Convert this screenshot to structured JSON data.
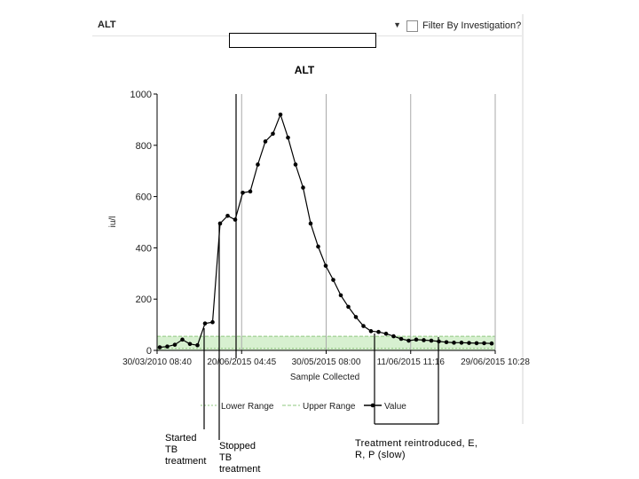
{
  "toolbar": {
    "selected_test": "ALT",
    "filter_label": "Filter By Investigation?"
  },
  "annotations": {
    "started": "Started\nTB\ntreatment",
    "stopped": "Stopped\nTB\ntreatment",
    "reintroduced": "Treatment reintroduced, E,\nR, P (slow)"
  },
  "colors": {
    "series": "#000000",
    "range_band": "#d7f0d0",
    "lower_range": "#8fc77f",
    "upper_range": "#8fc77f"
  },
  "chart_data": {
    "type": "line",
    "title": "ALT",
    "xlabel": "Sample Collected",
    "ylabel": "iu/l",
    "ylim": [
      0,
      1000
    ],
    "yticks": [
      "0",
      "200",
      "400",
      "600",
      "800",
      "1000"
    ],
    "xticks": [
      "30/03/2010 08:40",
      "20/06/2015 04:45",
      "30/05/2015 08:00",
      "11/06/2015 11:16",
      "29/06/2015 10:28"
    ],
    "grid": "vertical",
    "range_band": [
      0,
      55
    ],
    "legend": [
      "Lower Range",
      "Upper Range",
      "Value"
    ],
    "legend_position": "bottom",
    "series": [
      {
        "name": "Value",
        "values": [
          12,
          15,
          22,
          42,
          25,
          20,
          105,
          110,
          495,
          525,
          510,
          615,
          620,
          725,
          815,
          845,
          920,
          830,
          725,
          635,
          495,
          405,
          330,
          275,
          215,
          170,
          130,
          95,
          75,
          72,
          65,
          55,
          45,
          38,
          42,
          40,
          38,
          35,
          32,
          30,
          30,
          29,
          28,
          28,
          27
        ]
      }
    ]
  }
}
